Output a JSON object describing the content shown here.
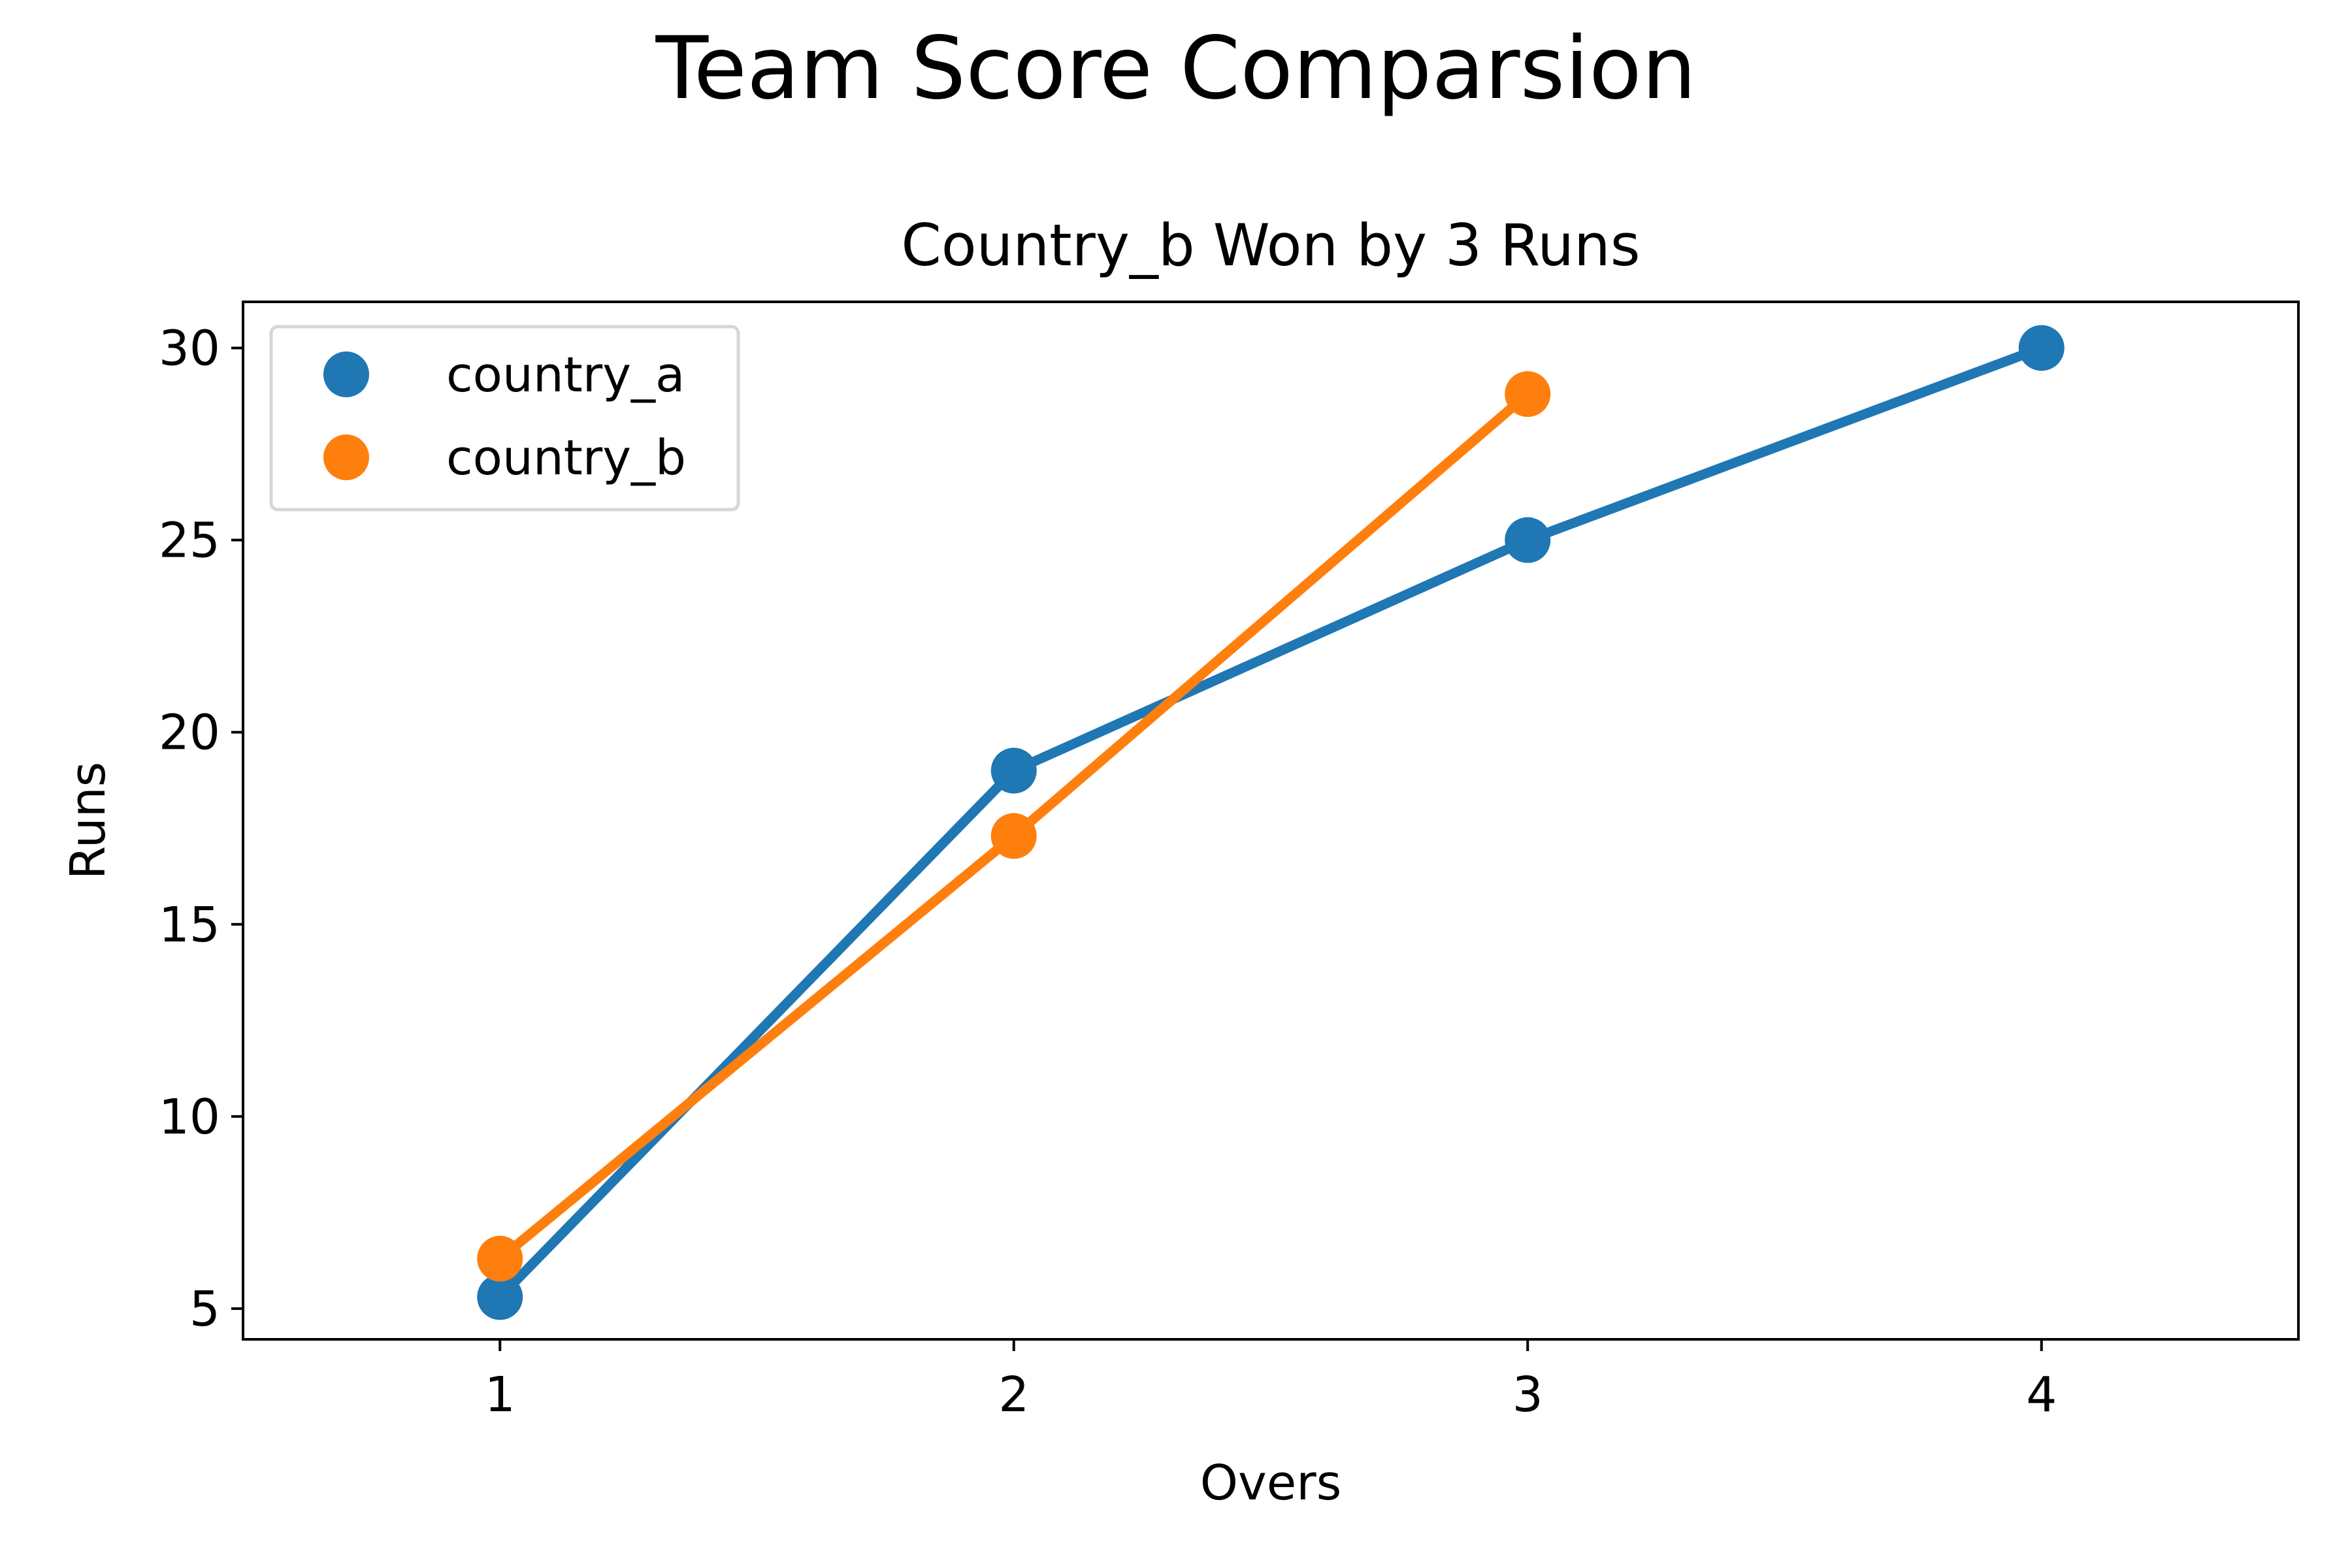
{
  "chart_data": {
    "type": "line",
    "suptitle": "Team Score Comparsion",
    "title": "Country_b Won by 3 Runs",
    "xlabel": "Overs",
    "ylabel": "Runs",
    "xlim": [
      0.5,
      4.5
    ],
    "ylim": [
      4.2,
      31.2
    ],
    "xticks": [
      1,
      2,
      3,
      4
    ],
    "xtick_labels": [
      "1",
      "2",
      "3",
      "4"
    ],
    "yticks": [
      5,
      10,
      15,
      20,
      25,
      30
    ],
    "ytick_labels": [
      "5",
      "10",
      "15",
      "20",
      "25",
      "30"
    ],
    "grid": false,
    "legend_position": "top-left",
    "series": [
      {
        "name": "country_a",
        "color": "#1f77b4",
        "x": [
          1,
          2,
          3,
          4
        ],
        "y": [
          5.3,
          19,
          25,
          30
        ]
      },
      {
        "name": "country_b",
        "color": "#ff7f0e",
        "x": [
          1,
          2,
          3
        ],
        "y": [
          6.3,
          17.3,
          28.8
        ]
      }
    ]
  }
}
